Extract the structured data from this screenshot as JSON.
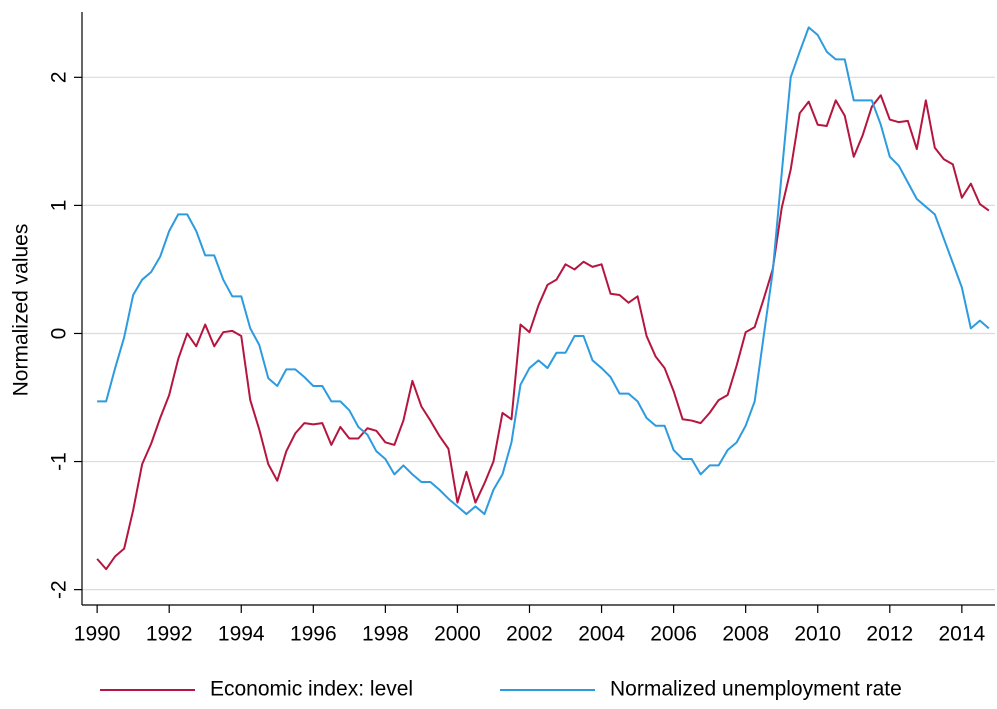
{
  "chart_data": {
    "type": "line",
    "y_label": "Normalized values",
    "x": [
      1990,
      1990.25,
      1990.5,
      1990.75,
      1991,
      1991.25,
      1991.5,
      1991.75,
      1992,
      1992.25,
      1992.5,
      1992.75,
      1993,
      1993.25,
      1993.5,
      1993.75,
      1994,
      1994.25,
      1994.5,
      1994.75,
      1995,
      1995.25,
      1995.5,
      1995.75,
      1996,
      1996.25,
      1996.5,
      1996.75,
      1997,
      1997.25,
      1997.5,
      1997.75,
      1998,
      1998.25,
      1998.5,
      1998.75,
      1999,
      1999.25,
      1999.5,
      1999.75,
      2000,
      2000.25,
      2000.5,
      2000.75,
      2001,
      2001.25,
      2001.5,
      2001.75,
      2002,
      2002.25,
      2002.5,
      2002.75,
      2003,
      2003.25,
      2003.5,
      2003.75,
      2004,
      2004.25,
      2004.5,
      2004.75,
      2005,
      2005.25,
      2005.5,
      2005.75,
      2006,
      2006.25,
      2006.5,
      2006.75,
      2007,
      2007.25,
      2007.5,
      2007.75,
      2008,
      2008.25,
      2008.5,
      2008.75,
      2009,
      2009.25,
      2009.5,
      2009.75,
      2010,
      2010.25,
      2010.5,
      2010.75,
      2011,
      2011.25,
      2011.5,
      2011.75,
      2012,
      2012.25,
      2012.5,
      2012.75,
      2013,
      2013.25,
      2013.5,
      2013.75,
      2014,
      2014.25,
      2014.5,
      2014.75
    ],
    "series": [
      {
        "name": "Economic index: level",
        "color": "#b5163f",
        "values": [
          -1.76,
          -1.84,
          -1.74,
          -1.68,
          -1.38,
          -1.02,
          -0.86,
          -0.66,
          -0.48,
          -0.2,
          0.0,
          -0.1,
          0.07,
          -0.1,
          0.01,
          0.02,
          -0.02,
          -0.52,
          -0.75,
          -1.02,
          -1.15,
          -0.92,
          -0.78,
          -0.7,
          -0.71,
          -0.7,
          -0.87,
          -0.73,
          -0.82,
          -0.82,
          -0.74,
          -0.76,
          -0.85,
          -0.87,
          -0.68,
          -0.37,
          -0.57,
          -0.68,
          -0.8,
          -0.9,
          -1.32,
          -1.08,
          -1.32,
          -1.17,
          -1.0,
          -0.62,
          -0.67,
          0.07,
          0.01,
          0.22,
          0.38,
          0.42,
          0.54,
          0.5,
          0.56,
          0.52,
          0.54,
          0.31,
          0.3,
          0.24,
          0.29,
          -0.02,
          -0.18,
          -0.27,
          -0.45,
          -0.67,
          -0.68,
          -0.7,
          -0.62,
          -0.52,
          -0.48,
          -0.25,
          0.01,
          0.05,
          0.27,
          0.5,
          0.98,
          1.28,
          1.72,
          1.81,
          1.63,
          1.62,
          1.82,
          1.7,
          1.38,
          1.55,
          1.77,
          1.86,
          1.67,
          1.65,
          1.66,
          1.44,
          1.82,
          1.45,
          1.36,
          1.32,
          1.06,
          1.17,
          1.01,
          0.96
        ]
      },
      {
        "name": "Normalized unemployment rate",
        "color": "#2d9bdf",
        "values": [
          -0.53,
          -0.53,
          -0.27,
          -0.03,
          0.3,
          0.42,
          0.48,
          0.6,
          0.8,
          0.93,
          0.93,
          0.8,
          0.61,
          0.61,
          0.42,
          0.29,
          0.29,
          0.04,
          -0.09,
          -0.35,
          -0.41,
          -0.28,
          -0.28,
          -0.34,
          -0.41,
          -0.41,
          -0.53,
          -0.53,
          -0.6,
          -0.73,
          -0.79,
          -0.92,
          -0.98,
          -1.1,
          -1.03,
          -1.1,
          -1.16,
          -1.16,
          -1.22,
          -1.29,
          -1.35,
          -1.41,
          -1.35,
          -1.41,
          -1.22,
          -1.1,
          -0.85,
          -0.4,
          -0.27,
          -0.21,
          -0.27,
          -0.15,
          -0.15,
          -0.02,
          -0.02,
          -0.21,
          -0.27,
          -0.34,
          -0.47,
          -0.47,
          -0.53,
          -0.66,
          -0.72,
          -0.72,
          -0.91,
          -0.98,
          -0.98,
          -1.1,
          -1.03,
          -1.03,
          -0.91,
          -0.85,
          -0.72,
          -0.53,
          -0.02,
          0.48,
          1.25,
          2.0,
          2.2,
          2.39,
          2.33,
          2.2,
          2.14,
          2.14,
          1.82,
          1.82,
          1.82,
          1.63,
          1.38,
          1.31,
          1.18,
          1.05,
          0.99,
          0.93,
          0.74,
          0.55,
          0.36,
          0.04,
          0.1,
          0.04
        ]
      }
    ],
    "xlim": [
      1989.58,
      2014.92
    ],
    "ylim": [
      -2.12,
      2.51
    ],
    "xticks": [
      1990,
      1992,
      1994,
      1996,
      1998,
      2000,
      2002,
      2004,
      2006,
      2008,
      2010,
      2012,
      2014
    ],
    "yticks": [
      -2,
      -1,
      0,
      1,
      2
    ],
    "grid": true,
    "legend": "bottom"
  }
}
